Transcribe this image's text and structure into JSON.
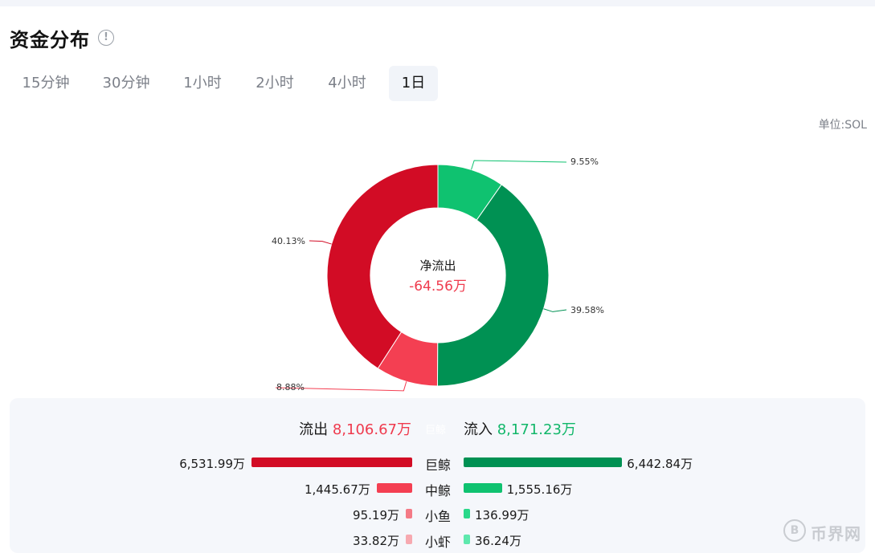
{
  "header": {
    "title": "资金分布",
    "info_icon": "info-icon"
  },
  "tabs": [
    {
      "label": "15分钟",
      "active": false
    },
    {
      "label": "30分钟",
      "active": false
    },
    {
      "label": "1小时",
      "active": false
    },
    {
      "label": "2小时",
      "active": false
    },
    {
      "label": "4小时",
      "active": false
    },
    {
      "label": "1日",
      "active": true
    }
  ],
  "unit": "单位:SOL",
  "chart_data": {
    "type": "pie",
    "title": "资金分布",
    "center_label": "净流出",
    "center_value": "-64.56万",
    "slices": [
      {
        "name": "中鲸流入",
        "value": 9.55,
        "label": "9.55%",
        "color": "#0fc270"
      },
      {
        "name": "巨鲸流入",
        "value": 39.58,
        "label": "39.58%",
        "color": "#009153"
      },
      {
        "name": "中鲸流出",
        "value": 8.88,
        "label": "8.88%",
        "color": "#f43f52"
      },
      {
        "name": "巨鲸流出",
        "value": 40.13,
        "label": "40.13%",
        "color": "#d20c25"
      }
    ]
  },
  "summary": {
    "out_label": "流出",
    "out_value": "8,106.67万",
    "mid_label": "巨鲸",
    "in_label": "流入",
    "in_value": "8,171.23万"
  },
  "rows": [
    {
      "label": "巨鲸",
      "out": "6,531.99万",
      "in": "6,442.84万",
      "out_num": 6531.99,
      "in_num": 6442.84,
      "out_color": "#d20c25",
      "in_color": "#009153"
    },
    {
      "label": "中鲸",
      "out": "1,445.67万",
      "in": "1,555.16万",
      "out_num": 1445.67,
      "in_num": 1555.16,
      "out_color": "#f43f52",
      "in_color": "#0fc270"
    },
    {
      "label": "小鱼",
      "out": "95.19万",
      "in": "136.99万",
      "out_num": 95.19,
      "in_num": 136.99,
      "out_color": "#f47a86",
      "in_color": "#2ad88a"
    },
    {
      "label": "小虾",
      "out": "33.82万",
      "in": "36.24万",
      "out_num": 33.82,
      "in_num": 36.24,
      "out_color": "#f7a9b0",
      "in_color": "#5ee8ad"
    }
  ],
  "watermark": {
    "text": "币界网",
    "icon": "coin-icon"
  }
}
